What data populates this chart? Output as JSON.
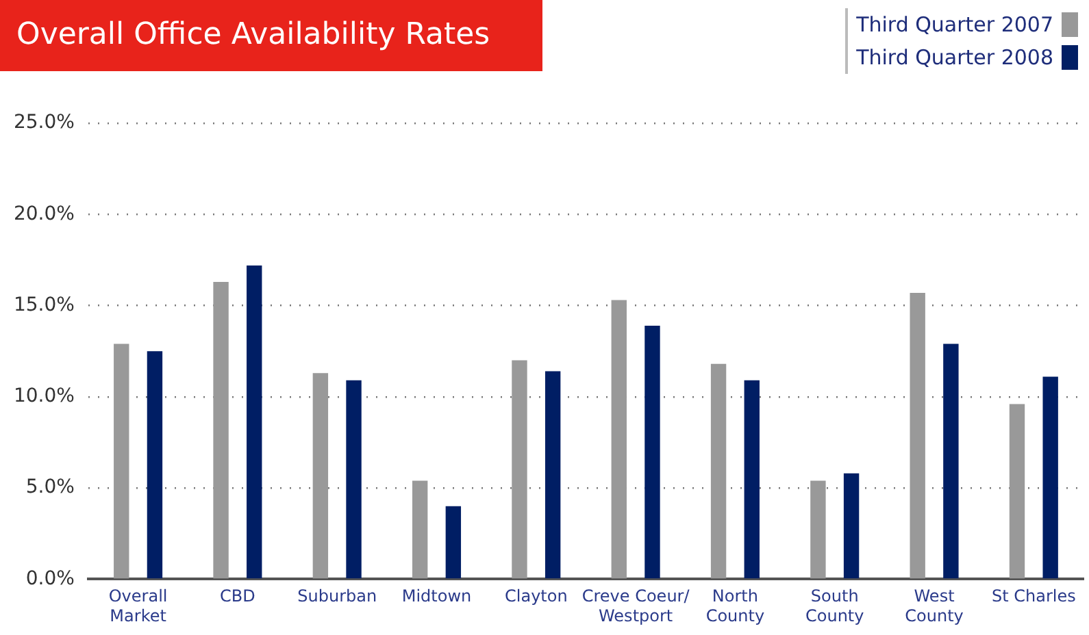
{
  "chart_data": {
    "type": "bar",
    "title": "Overall Office Availability Rates",
    "categories": [
      "Overall\nMarket",
      "CBD",
      "Suburban",
      "Midtown",
      "Clayton",
      "Creve Coeur/\nWestport",
      "North\nCounty",
      "South\nCounty",
      "West\nCounty",
      "St Charles"
    ],
    "series": [
      {
        "name": "Third Quarter 2007",
        "color": "#999999",
        "values": [
          12.9,
          16.3,
          11.3,
          5.4,
          12.0,
          15.3,
          11.8,
          5.4,
          15.7,
          9.6
        ]
      },
      {
        "name": "Third Quarter 2008",
        "color": "#001e64",
        "values": [
          12.5,
          17.2,
          10.9,
          4.0,
          11.4,
          13.9,
          10.9,
          5.8,
          12.9,
          11.1
        ]
      }
    ],
    "ylim": [
      0,
      25
    ],
    "yticks": [
      {
        "value": 0,
        "label": "0.0%"
      },
      {
        "value": 5,
        "label": "5.0%"
      },
      {
        "value": 10,
        "label": "10.0%"
      },
      {
        "value": 15,
        "label": "15.0%"
      },
      {
        "value": 20,
        "label": "20.0%"
      },
      {
        "value": 25,
        "label": "25.0%"
      }
    ],
    "grid": "y",
    "legend": "top right"
  }
}
